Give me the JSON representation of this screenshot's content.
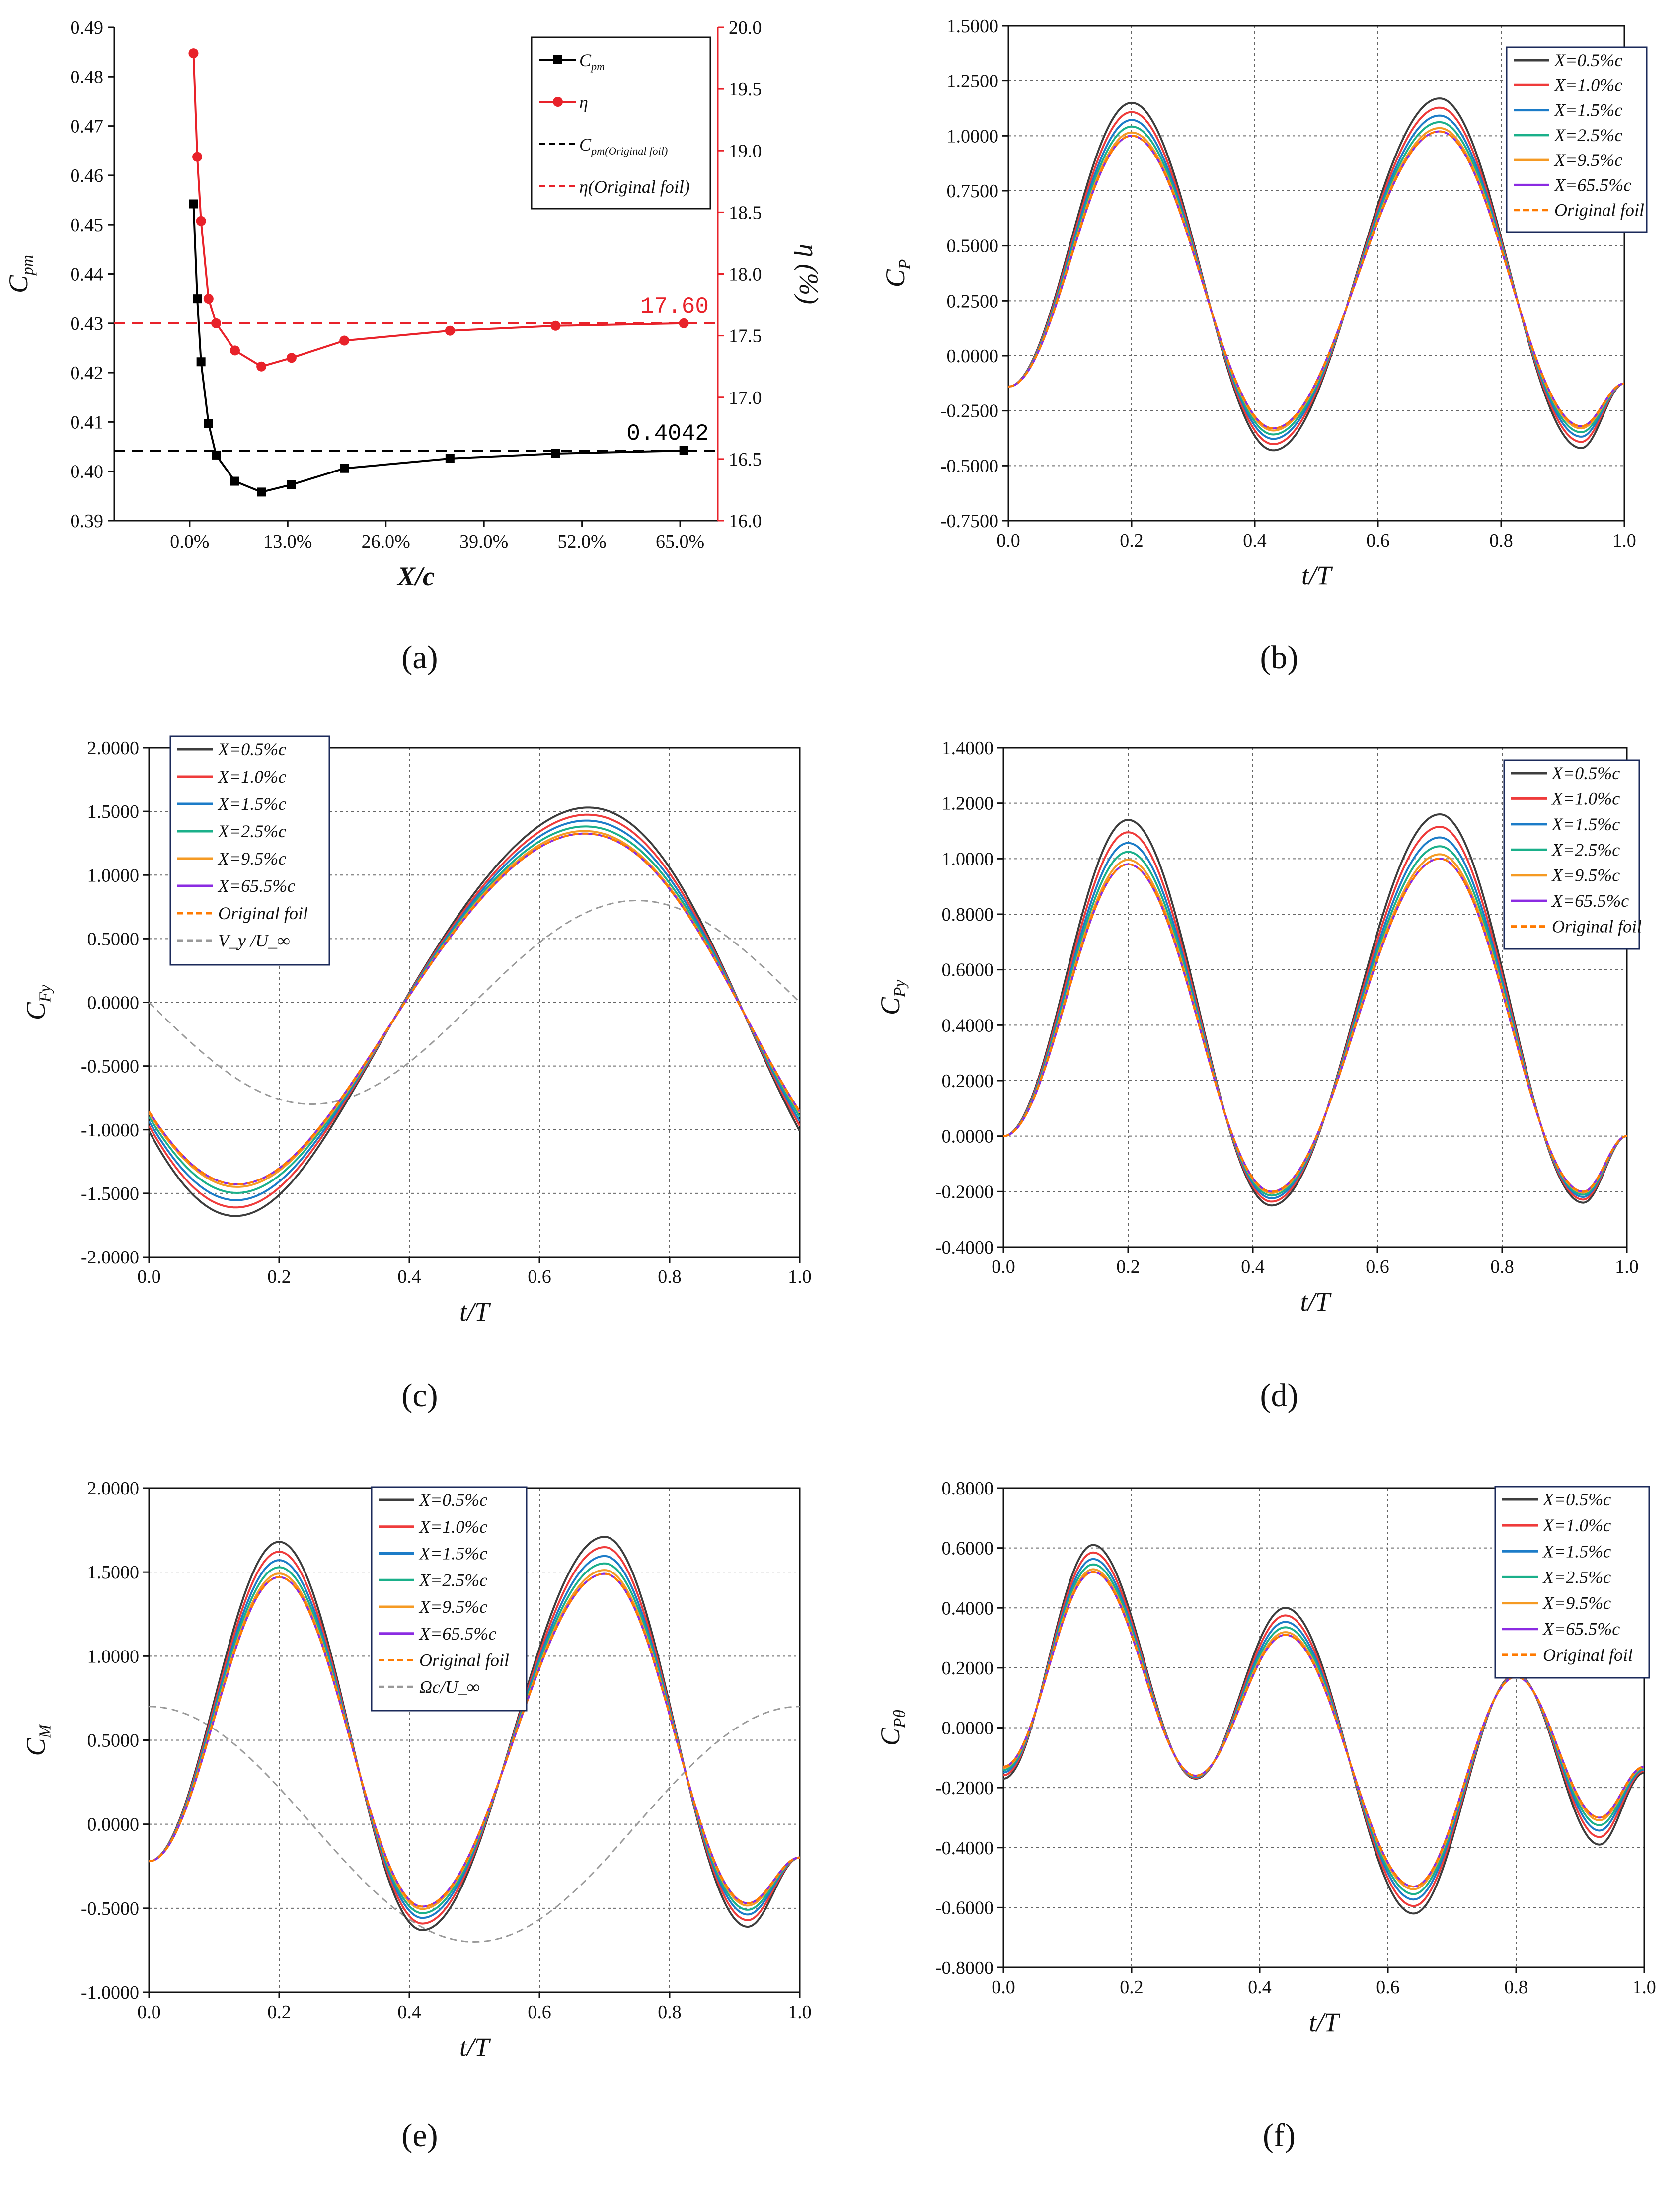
{
  "chart_data": [
    {
      "panel": "(a)",
      "type": "line",
      "xlabel": "X/c",
      "ylabel": "C_pm",
      "y2label": "η (%)",
      "xlim": [
        -0.1,
        0.7
      ],
      "ylim": [
        0.39,
        0.49
      ],
      "y2lim": [
        16.0,
        20.0
      ],
      "xticks": [
        0.0,
        0.13,
        0.26,
        0.39,
        0.52,
        0.65
      ],
      "xticklabels": [
        "0.0%",
        "13.0%",
        "26.0%",
        "39.0%",
        "52.0%",
        "65.0%"
      ],
      "yticks": [
        0.39,
        0.4,
        0.41,
        0.42,
        0.43,
        0.44,
        0.45,
        0.46,
        0.47,
        0.48,
        0.49
      ],
      "yticklabels": [
        "0.39",
        "0.40",
        "0.41",
        "0.42",
        "0.43",
        "0.44",
        "0.45",
        "0.46",
        "0.47",
        "0.48",
        "0.49"
      ],
      "y2ticks": [
        16.0,
        16.5,
        17.0,
        17.5,
        18.0,
        18.5,
        19.0,
        19.5,
        20.0
      ],
      "y2ticklabels": [
        "16.0",
        "16.5",
        "17.0",
        "17.5",
        "18.0",
        "18.5",
        "19.0",
        "19.5",
        "20.0"
      ],
      "series": [
        {
          "name": "C_pm",
          "axis": "left",
          "color": "#000000",
          "marker": "square",
          "x": [
            0.005,
            0.01,
            0.015,
            0.025,
            0.035,
            0.06,
            0.095,
            0.135,
            0.205,
            0.345,
            0.485,
            0.655
          ],
          "y": [
            0.4542,
            0.435,
            0.4222,
            0.4097,
            0.4033,
            0.398,
            0.3958,
            0.3973,
            0.4006,
            0.4026,
            0.4036,
            0.4042
          ]
        },
        {
          "name": "η",
          "axis": "right",
          "color": "#e8222a",
          "marker": "circle",
          "x": [
            0.005,
            0.01,
            0.015,
            0.025,
            0.035,
            0.06,
            0.095,
            0.135,
            0.205,
            0.345,
            0.485,
            0.655
          ],
          "y": [
            19.79,
            18.95,
            18.43,
            17.8,
            17.6,
            17.38,
            17.25,
            17.32,
            17.46,
            17.54,
            17.58,
            17.6
          ]
        }
      ],
      "reference_lines": [
        {
          "name": "C_pm(Original foil)",
          "axis": "left",
          "value": 0.4042,
          "label": "0.4042",
          "color": "#000000"
        },
        {
          "name": "η(Original foil)",
          "axis": "right",
          "value": 17.6,
          "label": "17.60",
          "color": "#e8222a"
        }
      ],
      "legend": [
        "C_pm",
        "η",
        "C_pm(Original foil)",
        "η(Original foil)"
      ],
      "legend_position": "top-right"
    },
    {
      "panel": "(b)",
      "type": "line",
      "xlabel": "t/T",
      "ylabel": "C_P",
      "xlim": [
        0,
        1
      ],
      "ylim": [
        -0.75,
        1.5
      ],
      "yticks": [
        -0.75,
        -0.5,
        -0.25,
        0,
        0.25,
        0.5,
        0.75,
        1.0,
        1.25,
        1.5
      ],
      "yticklabels": [
        "-0.7500",
        "-0.5000",
        "-0.2500",
        "0.0000",
        "0.2500",
        "0.5000",
        "0.7500",
        "1.0000",
        "1.2500",
        "1.5000"
      ],
      "xticklabels": [
        "0.0",
        "0.2",
        "0.4",
        "0.6",
        "0.8",
        "1.0"
      ],
      "shape": {
        "kind": "double_harmonic",
        "offset": 0.38,
        "a1": [
          0.12,
          0.09,
          0.07,
          0.05,
          0.02,
          0.0,
          0.0
        ],
        "a2": [
          0.8,
          0.76,
          0.73,
          0.71,
          0.68,
          0.67,
          0.67
        ],
        "phase2": 0.4
      },
      "series": [
        {
          "name": "X=0.5%c",
          "color": "#3d3d3d"
        },
        {
          "name": "X=1.0%c",
          "color": "#ef3b3b"
        },
        {
          "name": "X=1.5%c",
          "color": "#1c7cc8"
        },
        {
          "name": "X=2.5%c",
          "color": "#1ab08a"
        },
        {
          "name": "X=9.5%c",
          "color": "#f59a23"
        },
        {
          "name": "X=65.5%c",
          "color": "#8b2be2"
        },
        {
          "name": "Original foil",
          "color": "#ff7a00",
          "dashed": true
        }
      ],
      "peaks": {
        "t": [
          0.2,
          0.7
        ],
        "X=0.5%c": [
          1.15,
          1.17
        ],
        "Original foil": [
          1.0,
          1.02
        ]
      },
      "troughs": {
        "t": [
          0.43,
          0.93
        ],
        "X=0.5%c": [
          -0.43,
          -0.42
        ],
        "Original foil": [
          -0.33,
          -0.32
        ]
      },
      "legend_position": "top-right"
    },
    {
      "panel": "(c)",
      "type": "line",
      "xlabel": "t/T",
      "ylabel": "C_Fy",
      "xlim": [
        0,
        1
      ],
      "ylim": [
        -2.0,
        2.0
      ],
      "yticks": [
        -2.0,
        -1.5,
        -1.0,
        -0.5,
        0,
        0.5,
        1.0,
        1.5,
        2.0
      ],
      "yticklabels": [
        "-2.0000",
        "-1.5000",
        "-1.0000",
        "-0.5000",
        "0.0000",
        "0.5000",
        "1.0000",
        "1.5000",
        "2.0000"
      ],
      "xticklabels": [
        "0.0",
        "0.2",
        "0.4",
        "0.6",
        "0.8",
        "1.0"
      ],
      "shape": {
        "kind": "fundamental",
        "amp": [
          1.59,
          1.53,
          1.48,
          1.43,
          1.39,
          1.37,
          1.37
        ],
        "h2": [
          0.13,
          0.12,
          0.11,
          0.1,
          0.09,
          0.09,
          0.09
        ],
        "phase": 0.65
      },
      "series": [
        {
          "name": "X=0.5%c",
          "color": "#3d3d3d"
        },
        {
          "name": "X=1.0%c",
          "color": "#ef3b3b"
        },
        {
          "name": "X=1.5%c",
          "color": "#1c7cc8"
        },
        {
          "name": "X=2.5%c",
          "color": "#1ab08a"
        },
        {
          "name": "X=9.5%c",
          "color": "#f59a23"
        },
        {
          "name": "X=65.5%c",
          "color": "#8b2be2"
        },
        {
          "name": "Original foil",
          "color": "#ff7a00",
          "dashed": true
        },
        {
          "name": "V_y /U_∞",
          "color": "#999999",
          "dashed": true,
          "amplitude": 0.8,
          "form": "-0.8*sin(2πt)"
        }
      ],
      "legend_position": "top-left"
    },
    {
      "panel": "(d)",
      "type": "line",
      "xlabel": "t/T",
      "ylabel": "C_Py",
      "xlim": [
        0,
        1
      ],
      "ylim": [
        -0.4,
        1.4
      ],
      "yticks": [
        -0.4,
        -0.2,
        0,
        0.2,
        0.4,
        0.6,
        0.8,
        1.0,
        1.2,
        1.4
      ],
      "yticklabels": [
        "-0.4000",
        "-0.2000",
        "0.0000",
        "0.2000",
        "0.4000",
        "0.6000",
        "0.8000",
        "1.0000",
        "1.2000",
        "1.4000"
      ],
      "xticklabels": [
        "0.0",
        "0.2",
        "0.4",
        "0.6",
        "0.8",
        "1.0"
      ],
      "peaks": {
        "t": [
          0.2,
          0.7
        ],
        "X=0.5%c": [
          1.14,
          1.16
        ],
        "Original foil": [
          0.98,
          1.0
        ]
      },
      "troughs": {
        "t": [
          0.43,
          0.93
        ],
        "X=0.5%c": [
          -0.25,
          -0.24
        ],
        "Original foil": [
          -0.2,
          -0.2
        ]
      },
      "series": [
        {
          "name": "X=0.5%c",
          "color": "#3d3d3d"
        },
        {
          "name": "X=1.0%c",
          "color": "#ef3b3b"
        },
        {
          "name": "X=1.5%c",
          "color": "#1c7cc8"
        },
        {
          "name": "X=2.5%c",
          "color": "#1ab08a"
        },
        {
          "name": "X=9.5%c",
          "color": "#f59a23"
        },
        {
          "name": "X=65.5%c",
          "color": "#8b2be2"
        },
        {
          "name": "Original foil",
          "color": "#ff7a00",
          "dashed": true
        }
      ],
      "legend_position": "top-right"
    },
    {
      "panel": "(e)",
      "type": "line",
      "xlabel": "t/T",
      "ylabel": "C_M",
      "xlim": [
        0,
        1
      ],
      "ylim": [
        -1.0,
        2.0
      ],
      "yticks": [
        -1.0,
        -0.5,
        0,
        0.5,
        1.0,
        1.5,
        2.0
      ],
      "yticklabels": [
        "-1.0000",
        "-0.5000",
        "0.0000",
        "0.5000",
        "1.0000",
        "1.5000",
        "2.0000"
      ],
      "xticklabels": [
        "0.0",
        "0.2",
        "0.4",
        "0.6",
        "0.8",
        "1.0"
      ],
      "peaks": {
        "t": [
          0.2,
          0.7
        ],
        "X=0.5%c": [
          1.68,
          1.71
        ],
        "Original foil": [
          1.47,
          1.49
        ]
      },
      "troughs": {
        "t": [
          0.42,
          0.92
        ],
        "X=0.5%c": [
          -0.63,
          -0.61
        ],
        "Original foil": [
          -0.49,
          -0.47
        ]
      },
      "series": [
        {
          "name": "X=0.5%c",
          "color": "#3d3d3d"
        },
        {
          "name": "X=1.0%c",
          "color": "#ef3b3b"
        },
        {
          "name": "X=1.5%c",
          "color": "#1c7cc8"
        },
        {
          "name": "X=2.5%c",
          "color": "#1ab08a"
        },
        {
          "name": "X=9.5%c",
          "color": "#f59a23"
        },
        {
          "name": "X=65.5%c",
          "color": "#8b2be2"
        },
        {
          "name": "Original foil",
          "color": "#ff7a00",
          "dashed": true
        },
        {
          "name": "Ωc/U_∞",
          "color": "#999999",
          "dashed": true,
          "amplitude": 0.7,
          "form": "0.7*cos(2πt)"
        }
      ],
      "legend_position": "top-center"
    },
    {
      "panel": "(f)",
      "type": "line",
      "xlabel": "t/T",
      "ylabel": "C_Pθ",
      "xlim": [
        0,
        1
      ],
      "ylim": [
        -0.8,
        0.8
      ],
      "yticks": [
        -0.8,
        -0.6,
        -0.4,
        -0.2,
        0,
        0.2,
        0.4,
        0.6,
        0.8
      ],
      "yticklabels": [
        "-0.8000",
        "-0.6000",
        "-0.4000",
        "-0.2000",
        "0.0000",
        "0.2000",
        "0.4000",
        "0.6000",
        "0.8000"
      ],
      "xticklabels": [
        "0.0",
        "0.2",
        "0.4",
        "0.6",
        "0.8",
        "1.0"
      ],
      "keypoints_t": [
        0.0,
        0.14,
        0.3,
        0.44,
        0.64,
        0.8,
        0.93,
        1.0
      ],
      "keypoints": {
        "X=0.5%c": [
          -0.17,
          0.61,
          -0.17,
          0.4,
          -0.62,
          0.18,
          -0.39,
          -0.15
        ],
        "Original foil": [
          -0.13,
          0.52,
          -0.16,
          0.31,
          -0.53,
          0.17,
          -0.3,
          -0.13
        ]
      },
      "series": [
        {
          "name": "X=0.5%c",
          "color": "#3d3d3d"
        },
        {
          "name": "X=1.0%c",
          "color": "#ef3b3b"
        },
        {
          "name": "X=1.5%c",
          "color": "#1c7cc8"
        },
        {
          "name": "X=2.5%c",
          "color": "#1ab08a"
        },
        {
          "name": "X=9.5%c",
          "color": "#f59a23"
        },
        {
          "name": "X=65.5%c",
          "color": "#8b2be2"
        },
        {
          "name": "Original foil",
          "color": "#ff7a00",
          "dashed": true
        }
      ],
      "legend_position": "top-right"
    }
  ]
}
